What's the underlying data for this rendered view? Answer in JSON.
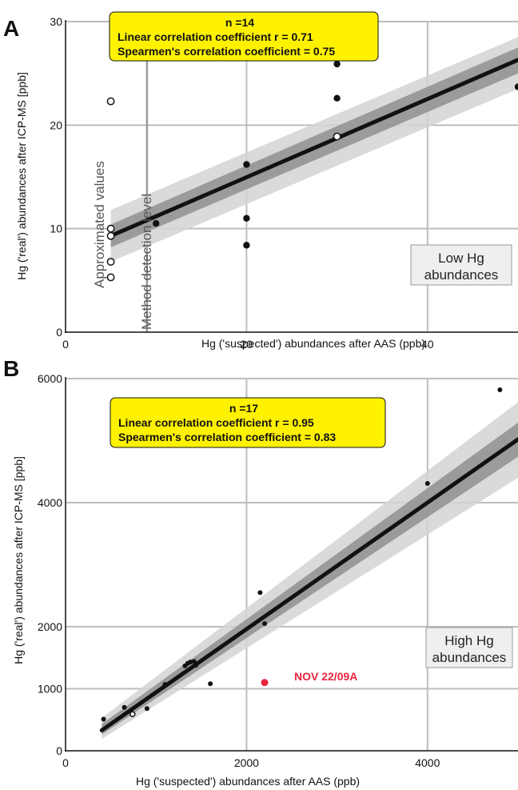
{
  "chart_data": [
    {
      "panel": "A",
      "type": "scatter",
      "xlabel": "Hg ('suspected') abundances after AAS (ppb)",
      "ylabel": "Hg ('real') abundances after ICP-MS [ppb]",
      "xlim": [
        0,
        50
      ],
      "ylim": [
        0,
        30
      ],
      "x_ticks": [
        0,
        20,
        40
      ],
      "y_ticks": [
        0,
        10,
        20,
        30
      ],
      "grid": true,
      "stats": {
        "n": "n =14",
        "linear": "Linear correlation coefficient r = 0.71",
        "spearman": "Spearmen's correlation coefficient = 0.75"
      },
      "region_label": [
        "Low Hg",
        "abundances"
      ],
      "detection_limit": {
        "x": 9,
        "label": "Method detection level"
      },
      "approx_label": "Approximated values",
      "regression": {
        "x": [
          5,
          50
        ],
        "y": [
          9.3,
          26.3
        ]
      },
      "band_inner": {
        "x": [
          5,
          50
        ],
        "upper": [
          10.4,
          27.5
        ],
        "lower": [
          8.2,
          25.0
        ]
      },
      "band_outer": {
        "x": [
          5,
          50
        ],
        "upper": [
          11.8,
          28.5
        ],
        "lower": [
          6.8,
          23.5
        ]
      },
      "points_filled": [
        {
          "x": 10,
          "y": 10.5
        },
        {
          "x": 20,
          "y": 16.2
        },
        {
          "x": 20,
          "y": 11.0
        },
        {
          "x": 20,
          "y": 8.4
        },
        {
          "x": 30,
          "y": 25.9
        },
        {
          "x": 30,
          "y": 22.6
        },
        {
          "x": 50,
          "y": 23.7
        }
      ],
      "points_open": [
        {
          "x": 5,
          "y": 22.3
        },
        {
          "x": 5,
          "y": 10.0
        },
        {
          "x": 5,
          "y": 9.3
        },
        {
          "x": 5,
          "y": 6.8
        },
        {
          "x": 5,
          "y": 5.3
        },
        {
          "x": 30,
          "y": 18.9
        }
      ]
    },
    {
      "panel": "B",
      "type": "scatter",
      "xlabel": "Hg ('suspected') abundances after AAS (ppb)",
      "ylabel": "Hg ('real') abundances after ICP-MS [ppb]",
      "xlim": [
        0,
        5000
      ],
      "ylim": [
        0,
        6000
      ],
      "x_ticks": [
        0,
        2000,
        4000
      ],
      "y_ticks": [
        0,
        1000,
        2000,
        4000,
        6000
      ],
      "grid": true,
      "stats": {
        "n": "n =17",
        "linear": "Linear correlation coefficient r = 0.95",
        "spearman": "Spearmen's correlation coefficient = 0.83"
      },
      "region_label": [
        "High Hg",
        "abundances"
      ],
      "outlier": {
        "x": 2200,
        "y": 1100,
        "label": "NOV 22/09A"
      },
      "regression": {
        "x": [
          400,
          5000
        ],
        "y": [
          330,
          5020
        ]
      },
      "band_inner": {
        "x": [
          400,
          5000
        ],
        "upper": [
          430,
          5290
        ],
        "lower": [
          260,
          4740
        ]
      },
      "band_outer": {
        "x": [
          400,
          5000
        ],
        "upper": [
          530,
          5620
        ],
        "lower": [
          190,
          4400
        ]
      },
      "points_filled": [
        {
          "x": 420,
          "y": 510
        },
        {
          "x": 650,
          "y": 700
        },
        {
          "x": 900,
          "y": 680
        },
        {
          "x": 1100,
          "y": 1070
        },
        {
          "x": 1320,
          "y": 1370
        },
        {
          "x": 1350,
          "y": 1410
        },
        {
          "x": 1380,
          "y": 1430
        },
        {
          "x": 1420,
          "y": 1440
        },
        {
          "x": 1440,
          "y": 1380
        },
        {
          "x": 1600,
          "y": 1080
        },
        {
          "x": 2150,
          "y": 2550
        },
        {
          "x": 2200,
          "y": 2050
        },
        {
          "x": 4000,
          "y": 4310
        },
        {
          "x": 4800,
          "y": 5820
        }
      ],
      "points_open": [
        {
          "x": 740,
          "y": 590
        }
      ]
    }
  ]
}
